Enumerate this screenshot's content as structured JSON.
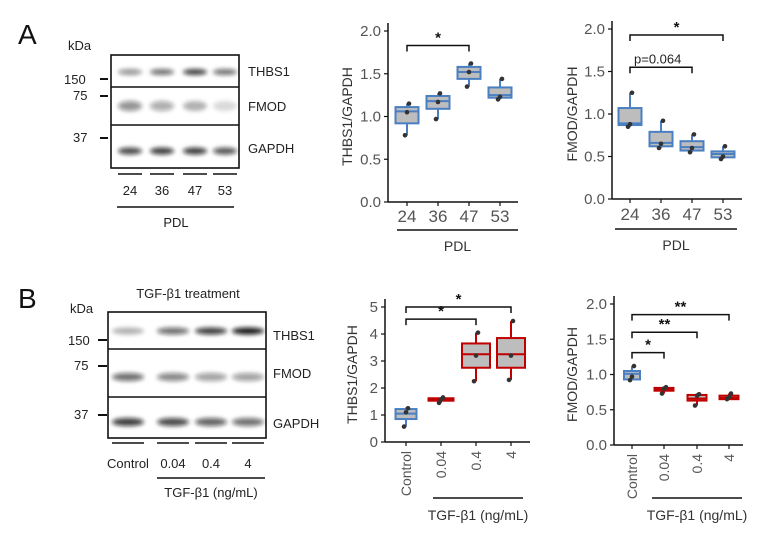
{
  "panels": {
    "a": "A",
    "b": "B"
  },
  "blot_a": {
    "kda": "kDa",
    "markers": [
      "150",
      "75",
      "37"
    ],
    "proteins": [
      "THBS1",
      "FMOD",
      "GAPDH"
    ],
    "lanes": [
      "24",
      "36",
      "47",
      "53"
    ],
    "group_label": "PDL",
    "band_intensity": {
      "THBS1": [
        0.45,
        0.6,
        0.8,
        0.6
      ],
      "FMOD": [
        0.45,
        0.35,
        0.3,
        0.15
      ],
      "GAPDH": [
        0.75,
        0.8,
        0.8,
        0.7
      ]
    }
  },
  "blot_b": {
    "title": "TGF-β1 treatment",
    "kda": "kDa",
    "markers": [
      "150",
      "75",
      "37"
    ],
    "proteins": [
      "THBS1",
      "FMOD",
      "GAPDH"
    ],
    "lanes": [
      "Control",
      "0.04",
      "0.4",
      "4"
    ],
    "group_label": "TGF-β1 (ng/mL)",
    "band_intensity": {
      "THBS1": [
        0.3,
        0.6,
        0.8,
        0.95
      ],
      "FMOD": [
        0.6,
        0.5,
        0.4,
        0.4
      ],
      "GAPDH": [
        0.8,
        0.75,
        0.65,
        0.6
      ]
    }
  },
  "chart_data": [
    {
      "type": "box",
      "ylabel": "THBS1/GAPDH",
      "xlabel": "PDL",
      "ylim": [
        0,
        2
      ],
      "yticks": [
        "0.0",
        "0.5",
        "1.0",
        "1.5",
        "2.0"
      ],
      "categories": [
        "24",
        "36",
        "47",
        "53"
      ],
      "colors": [
        "#4a7fc1",
        "#4a7fc1",
        "#4a7fc1",
        "#4a7fc1"
      ],
      "boxes": [
        {
          "min": 0.78,
          "q1": 0.92,
          "median": 1.06,
          "q3": 1.11,
          "max": 1.15,
          "points": [
            0.78,
            1.05,
            1.15
          ]
        },
        {
          "min": 0.97,
          "q1": 1.09,
          "median": 1.18,
          "q3": 1.24,
          "max": 1.27,
          "points": [
            0.97,
            1.17,
            1.27
          ]
        },
        {
          "min": 1.35,
          "q1": 1.44,
          "median": 1.52,
          "q3": 1.58,
          "max": 1.62,
          "points": [
            1.35,
            1.52,
            1.62
          ]
        },
        {
          "min": 1.2,
          "q1": 1.22,
          "median": 1.25,
          "q3": 1.34,
          "max": 1.44,
          "points": [
            1.2,
            1.23,
            1.44
          ]
        }
      ],
      "significance": [
        {
          "from": 0,
          "to": 2,
          "label": "*",
          "y": 1.83
        }
      ]
    },
    {
      "type": "box",
      "ylabel": "FMOD/GAPDH",
      "xlabel": "PDL",
      "ylim": [
        0,
        2
      ],
      "yticks": [
        "0.0",
        "0.5",
        "1.0",
        "1.5",
        "2.0"
      ],
      "categories": [
        "24",
        "36",
        "47",
        "53"
      ],
      "colors": [
        "#4a7fc1",
        "#4a7fc1",
        "#4a7fc1",
        "#4a7fc1"
      ],
      "boxes": [
        {
          "min": 0.85,
          "q1": 0.87,
          "median": 0.89,
          "q3": 1.07,
          "max": 1.25,
          "points": [
            0.85,
            0.88,
            1.25
          ]
        },
        {
          "min": 0.6,
          "q1": 0.62,
          "median": 0.66,
          "q3": 0.79,
          "max": 0.92,
          "points": [
            0.6,
            0.65,
            0.92
          ]
        },
        {
          "min": 0.55,
          "q1": 0.57,
          "median": 0.61,
          "q3": 0.68,
          "max": 0.76,
          "points": [
            0.55,
            0.6,
            0.76
          ]
        },
        {
          "min": 0.47,
          "q1": 0.49,
          "median": 0.53,
          "q3": 0.56,
          "max": 0.62,
          "points": [
            0.47,
            0.5,
            0.62
          ]
        }
      ],
      "significance": [
        {
          "from": 0,
          "to": 3,
          "label": "*",
          "y": 1.93
        },
        {
          "from": 0,
          "to": 2,
          "label": "p=0.064",
          "y": 1.55
        }
      ]
    },
    {
      "type": "box",
      "ylabel": "THBS1/GAPDH",
      "xlabel": "TGF-β1 (ng/mL)",
      "ylim": [
        0,
        5
      ],
      "yticks": [
        "0",
        "1",
        "2",
        "3",
        "4",
        "5"
      ],
      "categories": [
        "Control",
        "0.04",
        "0.4",
        "4"
      ],
      "colors": [
        "#4a7fc1",
        "#c00000",
        "#c00000",
        "#c00000"
      ],
      "boxes": [
        {
          "min": 0.57,
          "q1": 0.85,
          "median": 1.05,
          "q3": 1.22,
          "max": 1.28,
          "points": [
            0.57,
            1.1,
            1.25
          ]
        },
        {
          "min": 1.45,
          "q1": 1.53,
          "median": 1.58,
          "q3": 1.62,
          "max": 1.65,
          "points": [
            1.45,
            1.58,
            1.65
          ]
        },
        {
          "min": 2.25,
          "q1": 2.75,
          "median": 3.25,
          "q3": 3.65,
          "max": 4.05,
          "points": [
            2.25,
            3.2,
            4.05
          ]
        },
        {
          "min": 2.3,
          "q1": 2.75,
          "median": 3.25,
          "q3": 3.85,
          "max": 4.48,
          "points": [
            2.3,
            3.2,
            4.48
          ]
        }
      ],
      "significance": [
        {
          "from": 0,
          "to": 3,
          "label": "*",
          "y": 5.0
        },
        {
          "from": 0,
          "to": 2,
          "label": "*",
          "y": 4.55
        }
      ]
    },
    {
      "type": "box",
      "ylabel": "FMOD/GAPDH",
      "xlabel": "TGF-β1 (ng/mL)",
      "ylim": [
        0,
        2
      ],
      "yticks": [
        "0.0",
        "0.5",
        "1.0",
        "1.5",
        "2.0"
      ],
      "categories": [
        "Control",
        "0.04",
        "0.4",
        "4"
      ],
      "colors": [
        "#4a7fc1",
        "#c00000",
        "#c00000",
        "#c00000"
      ],
      "boxes": [
        {
          "min": 0.92,
          "q1": 0.93,
          "median": 1.01,
          "q3": 1.05,
          "max": 1.12,
          "points": [
            0.92,
            0.97,
            1.12
          ]
        },
        {
          "min": 0.73,
          "q1": 0.77,
          "median": 0.79,
          "q3": 0.81,
          "max": 0.82,
          "points": [
            0.73,
            0.8,
            0.82
          ]
        },
        {
          "min": 0.56,
          "q1": 0.63,
          "median": 0.66,
          "q3": 0.71,
          "max": 0.72,
          "points": [
            0.56,
            0.7,
            0.72
          ]
        },
        {
          "min": 0.65,
          "q1": 0.65,
          "median": 0.67,
          "q3": 0.7,
          "max": 0.73,
          "points": [
            0.65,
            0.68,
            0.73
          ]
        }
      ],
      "significance": [
        {
          "from": 0,
          "to": 3,
          "label": "**",
          "y": 1.85
        },
        {
          "from": 0,
          "to": 2,
          "label": "**",
          "y": 1.6
        },
        {
          "from": 0,
          "to": 1,
          "label": "*",
          "y": 1.31
        }
      ]
    }
  ]
}
